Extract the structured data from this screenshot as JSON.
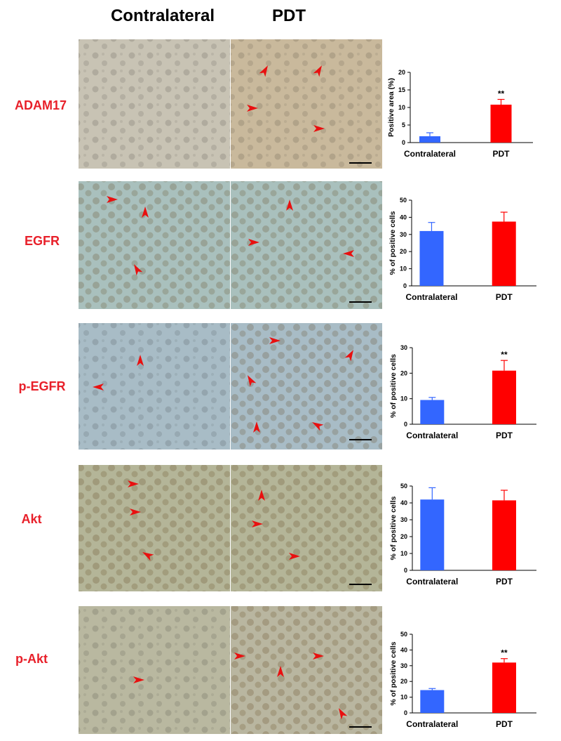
{
  "header": {
    "columns": [
      "Contralateral",
      "PDT"
    ]
  },
  "rows": [
    {
      "label": "ADAM17"
    },
    {
      "label": "EGFR"
    },
    {
      "label": "p-EGFR"
    },
    {
      "label": "Akt"
    },
    {
      "label": "p-Akt"
    }
  ],
  "chart_data": [
    {
      "type": "bar",
      "ylabel": "Positive area (%)",
      "categories": [
        "Contralateral",
        "PDT"
      ],
      "values": [
        1.8,
        10.8
      ],
      "errors": [
        1,
        1.5
      ],
      "colors": [
        "#3366ff",
        "#ff0000"
      ],
      "annotations": [
        null,
        "**"
      ],
      "ylim": [
        0,
        20
      ],
      "yticks": [
        0,
        5,
        10,
        15,
        20
      ]
    },
    {
      "type": "bar",
      "ylabel": "% of positive cells",
      "categories": [
        "Contralateral",
        "PDT"
      ],
      "values": [
        32,
        37.5
      ],
      "errors": [
        5,
        5.5
      ],
      "colors": [
        "#3366ff",
        "#ff0000"
      ],
      "annotations": [
        null,
        null
      ],
      "ylim": [
        0,
        50
      ],
      "yticks": [
        0,
        10,
        20,
        30,
        40,
        50
      ]
    },
    {
      "type": "bar",
      "ylabel": "% of positive cells",
      "categories": [
        "Contralateral",
        "PDT"
      ],
      "values": [
        9.5,
        21
      ],
      "errors": [
        1,
        4
      ],
      "colors": [
        "#3366ff",
        "#ff0000"
      ],
      "annotations": [
        null,
        "**"
      ],
      "ylim": [
        0,
        30
      ],
      "yticks": [
        0,
        10,
        20,
        30
      ]
    },
    {
      "type": "bar",
      "ylabel": "% of positive cells",
      "categories": [
        "Contralateral",
        "PDT"
      ],
      "values": [
        42,
        41.5
      ],
      "errors": [
        7,
        6
      ],
      "colors": [
        "#3366ff",
        "#ff0000"
      ],
      "annotations": [
        null,
        null
      ],
      "ylim": [
        0,
        50
      ],
      "yticks": [
        0,
        10,
        20,
        30,
        40,
        50
      ]
    },
    {
      "type": "bar",
      "ylabel": "% of positive cells",
      "categories": [
        "Contralateral",
        "PDT"
      ],
      "values": [
        14.5,
        32
      ],
      "errors": [
        1,
        2.5
      ],
      "colors": [
        "#3366ff",
        "#ff0000"
      ],
      "annotations": [
        null,
        "**"
      ],
      "ylim": [
        0,
        50
      ],
      "yticks": [
        0,
        10,
        20,
        30,
        40,
        50
      ]
    }
  ]
}
